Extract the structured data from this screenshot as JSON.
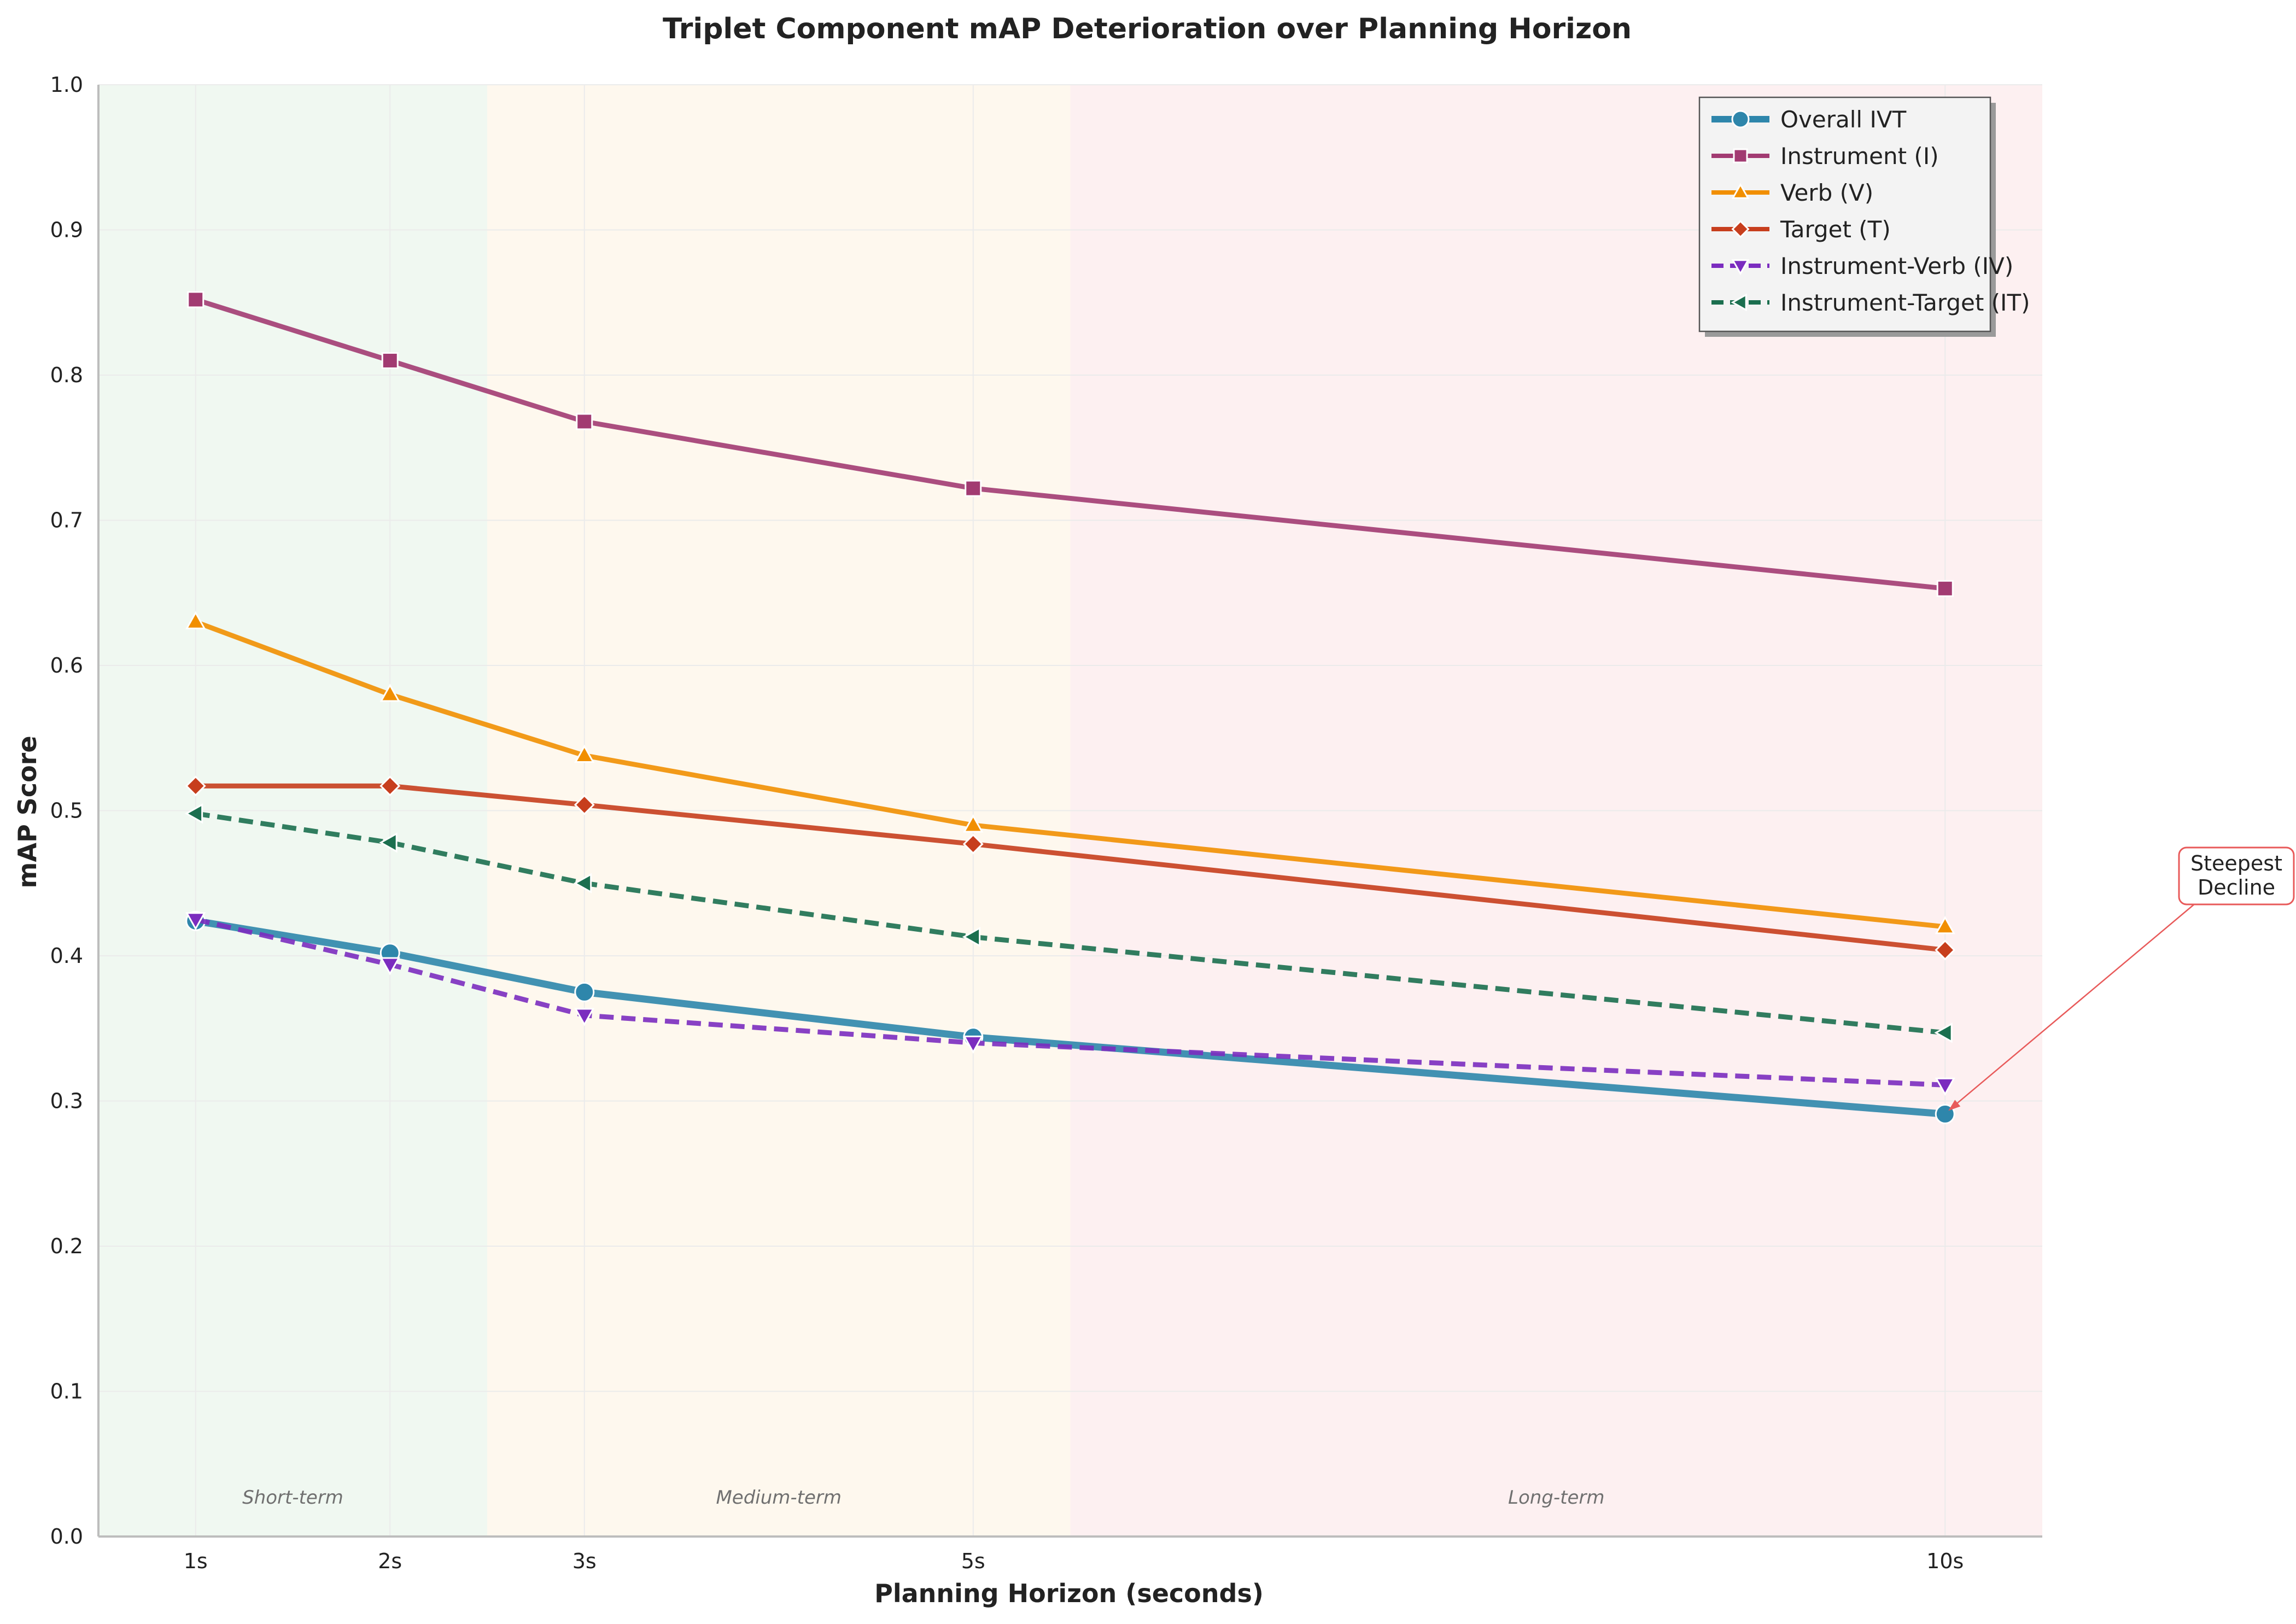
{
  "chart_data": {
    "type": "line",
    "title": "Triplet Component mAP Deterioration over Planning Horizon",
    "xlabel": "Planning Horizon (seconds)",
    "ylabel": "mAP Score",
    "x": [
      1,
      2,
      3,
      5,
      10
    ],
    "x_tick_labels": [
      "1s",
      "2s",
      "3s",
      "5s",
      "10s"
    ],
    "xlim": [
      0.5,
      10.5
    ],
    "ylim": [
      0,
      1.0
    ],
    "y_ticks": [
      0.0,
      0.1,
      0.2,
      0.3,
      0.4,
      0.5,
      0.6,
      0.7,
      0.8,
      0.9,
      1.0
    ],
    "y_tick_labels": [
      "0.0",
      "0.1",
      "0.2",
      "0.3",
      "0.4",
      "0.5",
      "0.6",
      "0.7",
      "0.8",
      "0.9",
      "1.0"
    ],
    "grid": true,
    "legend_position": "top-right",
    "regions": [
      {
        "label": "Short-term",
        "x_start": 0.5,
        "x_end": 2.5,
        "color": "#e3f2e5"
      },
      {
        "label": "Medium-term",
        "x_start": 2.5,
        "x_end": 5.5,
        "color": "#fdf3e0"
      },
      {
        "label": "Long-term",
        "x_start": 5.5,
        "x_end": 10.5,
        "color": "#fce3e6"
      }
    ],
    "series": [
      {
        "name": "Overall IVT",
        "values": [
          0.424,
          0.402,
          0.375,
          0.344,
          0.291
        ],
        "color": "#2e86ab",
        "marker": "circle",
        "dash": "solid",
        "width": "thick"
      },
      {
        "name": "Instrument (I)",
        "values": [
          0.852,
          0.81,
          0.768,
          0.722,
          0.653
        ],
        "color": "#a23b72",
        "marker": "square",
        "dash": "solid",
        "width": "normal"
      },
      {
        "name": "Verb (V)",
        "values": [
          0.63,
          0.58,
          0.538,
          0.49,
          0.42
        ],
        "color": "#f18f01",
        "marker": "triangle-up",
        "dash": "solid",
        "width": "normal"
      },
      {
        "name": "Target (T)",
        "values": [
          0.517,
          0.517,
          0.504,
          0.477,
          0.404
        ],
        "color": "#c73e1d",
        "marker": "diamond",
        "dash": "solid",
        "width": "normal"
      },
      {
        "name": "Instrument-Verb (IV)",
        "values": [
          0.425,
          0.394,
          0.359,
          0.34,
          0.311
        ],
        "color": "#7b2cbf",
        "marker": "triangle-down",
        "dash": "dashed",
        "width": "normal"
      },
      {
        "name": "Instrument-Target (IT)",
        "values": [
          0.498,
          0.478,
          0.45,
          0.413,
          0.347
        ],
        "color": "#1b6f4f",
        "marker": "triangle-left",
        "dash": "dashed",
        "width": "normal"
      }
    ],
    "annotations": [
      {
        "text_lines": [
          "Steepest",
          "Decline"
        ],
        "points_to_series": "Overall IVT",
        "x": 10,
        "y": 0.291,
        "color": "#e85a5a"
      }
    ]
  }
}
